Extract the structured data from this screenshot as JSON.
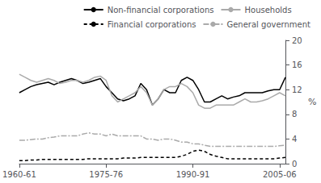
{
  "chart_data": {
    "type": "line",
    "categories": [
      "1960-61",
      null,
      null,
      null,
      null,
      null,
      null,
      null,
      null,
      null,
      null,
      null,
      null,
      null,
      null,
      "1975-76",
      null,
      null,
      null,
      null,
      null,
      null,
      null,
      null,
      null,
      null,
      null,
      null,
      null,
      null,
      "1990-91",
      null,
      null,
      null,
      null,
      null,
      null,
      null,
      null,
      null,
      null,
      null,
      null,
      null,
      null,
      "2005-06",
      null
    ],
    "ylabel": "%",
    "ylim": [
      0,
      20
    ],
    "yticks": [
      0,
      4,
      8,
      12,
      16,
      20
    ],
    "grid": false,
    "legend": "upper right",
    "series": [
      {
        "name": "Non-financial corporations",
        "color": "#000000",
        "line_style": "solid",
        "values": [
          11.5,
          12.0,
          12.5,
          12.8,
          13.0,
          13.2,
          12.8,
          13.2,
          13.5,
          13.8,
          13.5,
          13.0,
          13.2,
          13.5,
          13.8,
          12.5,
          11.5,
          10.5,
          10.2,
          10.5,
          11.0,
          13.0,
          12.0,
          9.5,
          10.5,
          12.0,
          11.5,
          11.5,
          13.5,
          14.0,
          13.5,
          12.0,
          10.0,
          10.0,
          10.5,
          11.0,
          10.5,
          10.8,
          11.0,
          11.5,
          11.5,
          11.5,
          11.5,
          11.8,
          12.0,
          12.0,
          14.0
        ]
      },
      {
        "name": "Households",
        "color": "#aaaaaa",
        "line_style": "solid",
        "values": [
          14.5,
          14.0,
          13.5,
          13.2,
          13.5,
          13.8,
          13.5,
          13.0,
          13.2,
          13.5,
          13.5,
          13.2,
          13.5,
          14.0,
          14.2,
          13.5,
          11.0,
          10.0,
          10.5,
          11.0,
          11.5,
          12.5,
          11.5,
          9.5,
          10.5,
          12.0,
          12.5,
          12.5,
          13.0,
          12.5,
          11.5,
          9.5,
          9.0,
          9.0,
          9.5,
          9.5,
          9.5,
          9.5,
          10.0,
          10.5,
          10.0,
          10.0,
          10.2,
          10.5,
          11.0,
          11.5,
          11.0
        ]
      },
      {
        "name": "Financial corporations",
        "color": "#000000",
        "line_style": "dashed",
        "values": [
          0.5,
          0.5,
          0.6,
          0.6,
          0.7,
          0.7,
          0.7,
          0.7,
          0.7,
          0.7,
          0.7,
          0.7,
          0.8,
          0.8,
          0.8,
          0.8,
          0.8,
          0.8,
          0.9,
          0.9,
          0.9,
          1.0,
          1.0,
          1.0,
          1.0,
          1.0,
          1.0,
          1.0,
          1.2,
          1.5,
          2.0,
          2.2,
          2.0,
          1.5,
          1.2,
          1.0,
          0.8,
          0.8,
          0.8,
          0.8,
          0.8,
          0.8,
          0.8,
          0.8,
          0.8,
          0.9,
          1.0
        ]
      },
      {
        "name": "General government",
        "color": "#aaaaaa",
        "line_style": "dashdot",
        "values": [
          3.8,
          3.8,
          3.9,
          4.0,
          4.0,
          4.2,
          4.3,
          4.5,
          4.5,
          4.5,
          4.5,
          4.8,
          5.0,
          4.8,
          4.8,
          4.5,
          4.8,
          4.5,
          4.5,
          4.5,
          4.5,
          4.5,
          4.0,
          4.0,
          3.8,
          4.0,
          4.0,
          3.8,
          3.5,
          3.5,
          3.2,
          3.2,
          3.0,
          2.8,
          2.8,
          2.8,
          2.8,
          2.8,
          2.8,
          2.8,
          2.8,
          2.8,
          2.8,
          2.8,
          2.8,
          2.9,
          3.0
        ]
      }
    ]
  }
}
